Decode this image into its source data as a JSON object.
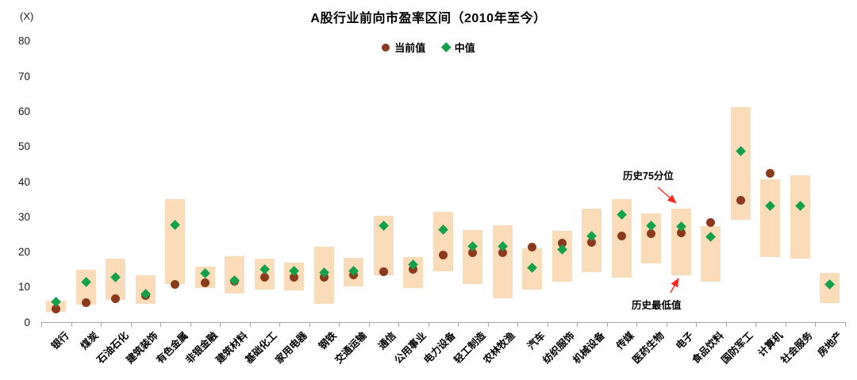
{
  "chart_data": {
    "type": "bar",
    "subtype": "floating-range-bars-with-point-markers",
    "title": "A股行业前向市盈率区间（2010年至今）",
    "unit_label": "(X)",
    "ylim": [
      0,
      80
    ],
    "yticks": [
      0,
      10,
      20,
      30,
      40,
      50,
      60,
      70,
      80
    ],
    "grid": false,
    "legend_position": "top-center",
    "legend": [
      {
        "label": "当前值",
        "marker": "circle",
        "color": "#8B3A1D"
      },
      {
        "label": "中值",
        "marker": "diamond",
        "color": "#13A14B"
      }
    ],
    "bar_color": "#FADCBB",
    "axis_color": "#A6A6A6",
    "arrow_color": "#FF2619",
    "categories": [
      "银行",
      "煤炭",
      "石油石化",
      "建筑装饰",
      "有色金属",
      "非银金融",
      "建筑材料",
      "基础化工",
      "家用电器",
      "钢铁",
      "交通运输",
      "通信",
      "公用事业",
      "电力设备",
      "轻工制造",
      "农林牧渔",
      "汽车",
      "纺织服饰",
      "机械设备",
      "传媒",
      "医药生物",
      "电子",
      "食品饮料",
      "国防军工",
      "计算机",
      "社会服务",
      "房地产"
    ],
    "series": [
      {
        "name": "历史最低值",
        "role": "range-low",
        "values": [
          3.0,
          5.1,
          6.4,
          5.3,
          10.9,
          9.9,
          8.3,
          9.4,
          9.2,
          5.3,
          10.3,
          13.5,
          9.8,
          14.5,
          10.9,
          6.9,
          9.3,
          11.7,
          14.4,
          12.8,
          16.9,
          13.5,
          11.7,
          29.2,
          18.6,
          18.3,
          5.6
        ]
      },
      {
        "name": "历史75分位",
        "role": "range-high",
        "values": [
          6.3,
          15.1,
          18.3,
          13.4,
          35.2,
          16.0,
          19.0,
          18.3,
          17.0,
          21.6,
          18.4,
          30.5,
          18.7,
          31.6,
          26.3,
          27.6,
          21.1,
          26.1,
          32.5,
          35.2,
          31.1,
          32.4,
          27.5,
          61.3,
          40.8,
          41.9,
          14.2
        ]
      },
      {
        "name": "中值",
        "role": "median",
        "marker": "diamond",
        "color": "#13A14B",
        "values": [
          5.8,
          11.5,
          13.0,
          8.2,
          27.8,
          14.1,
          12.0,
          15.1,
          14.8,
          14.3,
          14.8,
          27.6,
          16.4,
          26.5,
          21.8,
          21.8,
          15.7,
          20.9,
          24.6,
          30.7,
          27.5,
          27.3,
          24.3,
          48.8,
          33.3,
          33.3,
          10.8
        ]
      },
      {
        "name": "当前值",
        "role": "current",
        "marker": "circle",
        "color": "#8B3A1D",
        "values": [
          3.9,
          5.7,
          6.8,
          7.7,
          10.9,
          11.4,
          11.7,
          12.8,
          12.8,
          13.0,
          13.5,
          14.4,
          15.2,
          19.2,
          19.8,
          20.0,
          21.6,
          22.7,
          22.9,
          24.7,
          25.4,
          25.6,
          28.6,
          34.8,
          42.4,
          null,
          null
        ]
      }
    ],
    "annotations": [
      {
        "text": "历史75分位",
        "target_category": "电子",
        "target_point": "bar-top"
      },
      {
        "text": "历史最低值",
        "target_category": "电子",
        "target_point": "bar-bottom"
      }
    ]
  }
}
